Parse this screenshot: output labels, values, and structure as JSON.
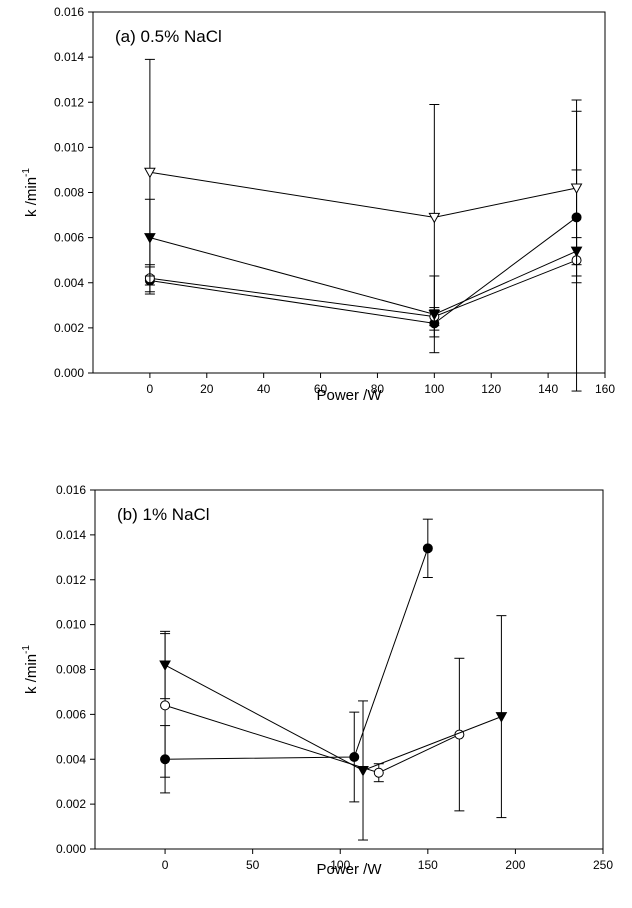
{
  "chart_data": [
    {
      "type": "scatter",
      "title": "(a) 0.5% NaCl",
      "xlabel": "Power /W",
      "ylabel": "k /min",
      "ylabel_sup": "-1",
      "xlim": [
        -20,
        160
      ],
      "ylim": [
        0,
        0.016
      ],
      "xticks": [
        0,
        20,
        40,
        60,
        80,
        100,
        120,
        140,
        160
      ],
      "xtick_labels": [
        "0",
        "20",
        "40",
        "60",
        "80",
        "100",
        "120",
        "140",
        "160"
      ],
      "yticks": [
        0,
        0.002,
        0.004,
        0.006,
        0.008,
        0.01,
        0.012,
        0.014,
        0.016
      ],
      "ytick_labels": [
        "0.000",
        "0.002",
        "0.004",
        "0.006",
        "0.008",
        "0.010",
        "0.012",
        "0.014",
        "0.016"
      ],
      "grid": false,
      "series": [
        {
          "marker": "filled-circle",
          "x": [
            0,
            100,
            150
          ],
          "y": [
            0.0041,
            0.0022,
            0.0069
          ],
          "err": [
            0.0006,
            0.0006,
            0.0021
          ]
        },
        {
          "marker": "open-circle",
          "x": [
            0,
            100,
            150
          ],
          "y": [
            0.0042,
            0.0025,
            0.005
          ],
          "err": [
            0.0006,
            0.0004,
            0.001
          ]
        },
        {
          "marker": "filled-triangle-down",
          "x": [
            0,
            100,
            150
          ],
          "y": [
            0.006,
            0.0026,
            0.0054
          ],
          "err": [
            0.0017,
            0.0017,
            0.0062
          ]
        },
        {
          "marker": "open-triangle-down",
          "x": [
            0,
            100,
            150
          ],
          "y": [
            0.0089,
            0.0069,
            0.0082
          ],
          "err": [
            0.005,
            0.005,
            0.0039
          ]
        }
      ]
    },
    {
      "type": "scatter",
      "title": "(b) 1% NaCl",
      "xlabel": "Power /W",
      "ylabel": "k /min",
      "ylabel_sup": "-1",
      "xlim": [
        -40,
        250
      ],
      "ylim": [
        0,
        0.016
      ],
      "xticks": [
        0,
        50,
        100,
        150,
        200,
        250
      ],
      "xtick_labels": [
        "0",
        "50",
        "100",
        "150",
        "200",
        "250"
      ],
      "yticks": [
        0,
        0.002,
        0.004,
        0.006,
        0.008,
        0.01,
        0.012,
        0.014,
        0.016
      ],
      "ytick_labels": [
        "0.000",
        "0.002",
        "0.004",
        "0.006",
        "0.008",
        "0.010",
        "0.012",
        "0.014",
        "0.016"
      ],
      "grid": false,
      "series": [
        {
          "marker": "filled-circle",
          "x": [
            0,
            108,
            150
          ],
          "y": [
            0.004,
            0.0041,
            0.0134
          ],
          "err": [
            0.0015,
            0.002,
            0.0013
          ]
        },
        {
          "marker": "open-circle",
          "x": [
            0,
            122,
            168
          ],
          "y": [
            0.0064,
            0.0034,
            0.0051
          ],
          "err": [
            0.0032,
            0.0004,
            0.0034
          ]
        },
        {
          "marker": "filled-triangle-down",
          "x": [
            0,
            113,
            192
          ],
          "y": [
            0.0082,
            0.0035,
            0.0059
          ],
          "err": [
            0.0015,
            0.0031,
            0.0045
          ]
        }
      ]
    }
  ]
}
